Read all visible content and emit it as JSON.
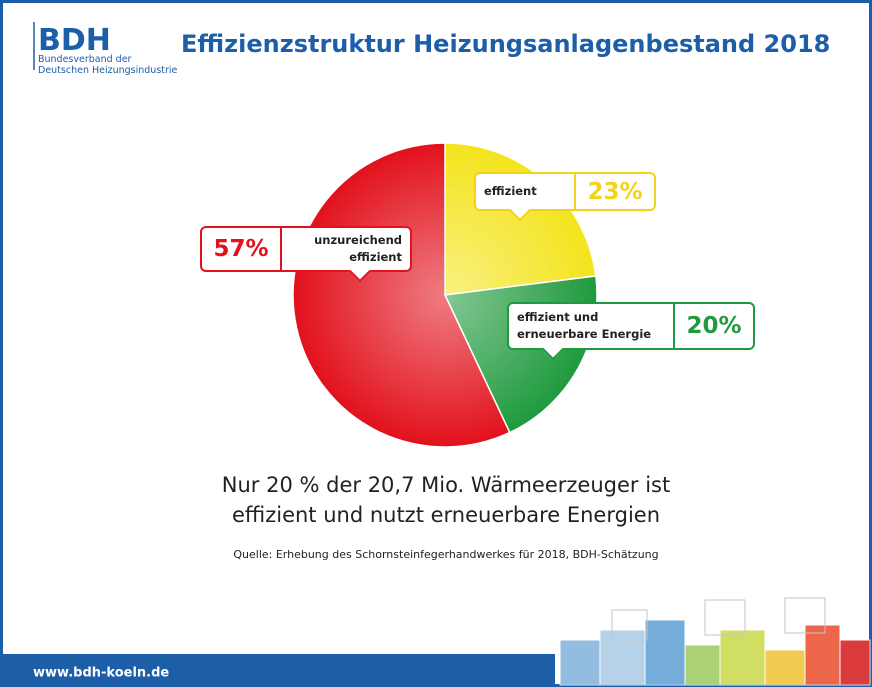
{
  "logo": {
    "name": "BDH",
    "lines": [
      "Bundesverband der",
      "Deutschen Heizungsindustrie"
    ]
  },
  "chart_data": {
    "type": "pie",
    "title": "Effizienzstruktur Heizungsanlagenbestand 2018",
    "categories": [
      "effizient",
      "effizient und erneuerbare Energie",
      "unzureichend effizient"
    ],
    "values": [
      23,
      20,
      57
    ],
    "value_labels": [
      "23%",
      "20%",
      "57%"
    ],
    "colors": [
      "#f4e41c",
      "#1f9a3e",
      "#e2111c"
    ],
    "subtitle": [
      "Nur 20 % der 20,7 Mio. Wärmeerzeuger ist",
      "effizient und nutzt erneuerbare Energien"
    ],
    "source": "Quelle: Erhebung des Schornsteinfegerhandwerkes für 2018, BDH-Schätzung"
  },
  "footer": "www.bdh-koeln.de"
}
